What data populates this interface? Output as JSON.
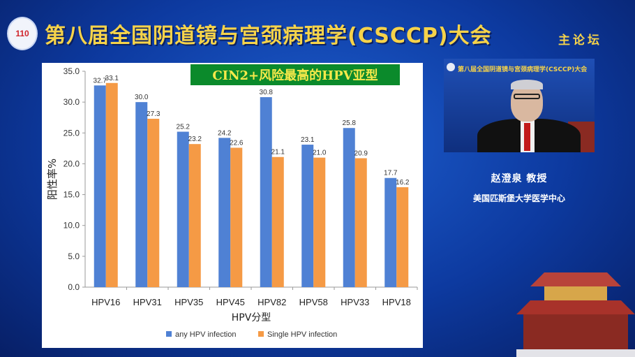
{
  "header": {
    "logo_text": "110",
    "title": "第八届全国阴道镜与宫颈病理学(CSCCP)大会",
    "forum_label": "主论坛"
  },
  "slide": {
    "banner": "CIN2+风险最高的HPV亚型"
  },
  "video": {
    "title": "第八届全国阴道镜与宫颈病理学(CSCCP)大会"
  },
  "speaker": {
    "name": "赵澄泉 教授",
    "org": "美国匹斯堡大学医学中心"
  },
  "colors": {
    "series1": "#4f81d4",
    "series2": "#f59a45",
    "banner_bg": "#0b8a2b",
    "banner_text": "#f6e94a",
    "title_gold": "#f6d34a"
  },
  "chart_data": {
    "type": "bar",
    "categories": [
      "HPV16",
      "HPV31",
      "HPV35",
      "HPV45",
      "HPV82",
      "HPV58",
      "HPV33",
      "HPV18"
    ],
    "series": [
      {
        "name": "any HPV infection",
        "values": [
          32.7,
          30.0,
          25.2,
          24.2,
          30.8,
          23.1,
          25.8,
          17.7
        ],
        "labels": [
          "32.7",
          "30.0",
          "25.2",
          "24.2",
          "30.8",
          "23.1",
          "25.8",
          "17.7"
        ]
      },
      {
        "name": "Single HPV infection",
        "values": [
          33.1,
          27.3,
          23.2,
          22.6,
          21.1,
          21.0,
          20.9,
          16.2
        ],
        "labels": [
          "33.1",
          "27.3",
          "23.2",
          "22.6",
          "21.1",
          "21.0",
          "20.9",
          "16.2"
        ]
      }
    ],
    "xlabel": "HPV分型",
    "ylabel": "阳性率%",
    "ylim": [
      0,
      35
    ],
    "yticks": [
      "0.0",
      "5.0",
      "10.0",
      "15.0",
      "20.0",
      "25.0",
      "30.0",
      "35.0"
    ],
    "legend_position": "bottom"
  }
}
